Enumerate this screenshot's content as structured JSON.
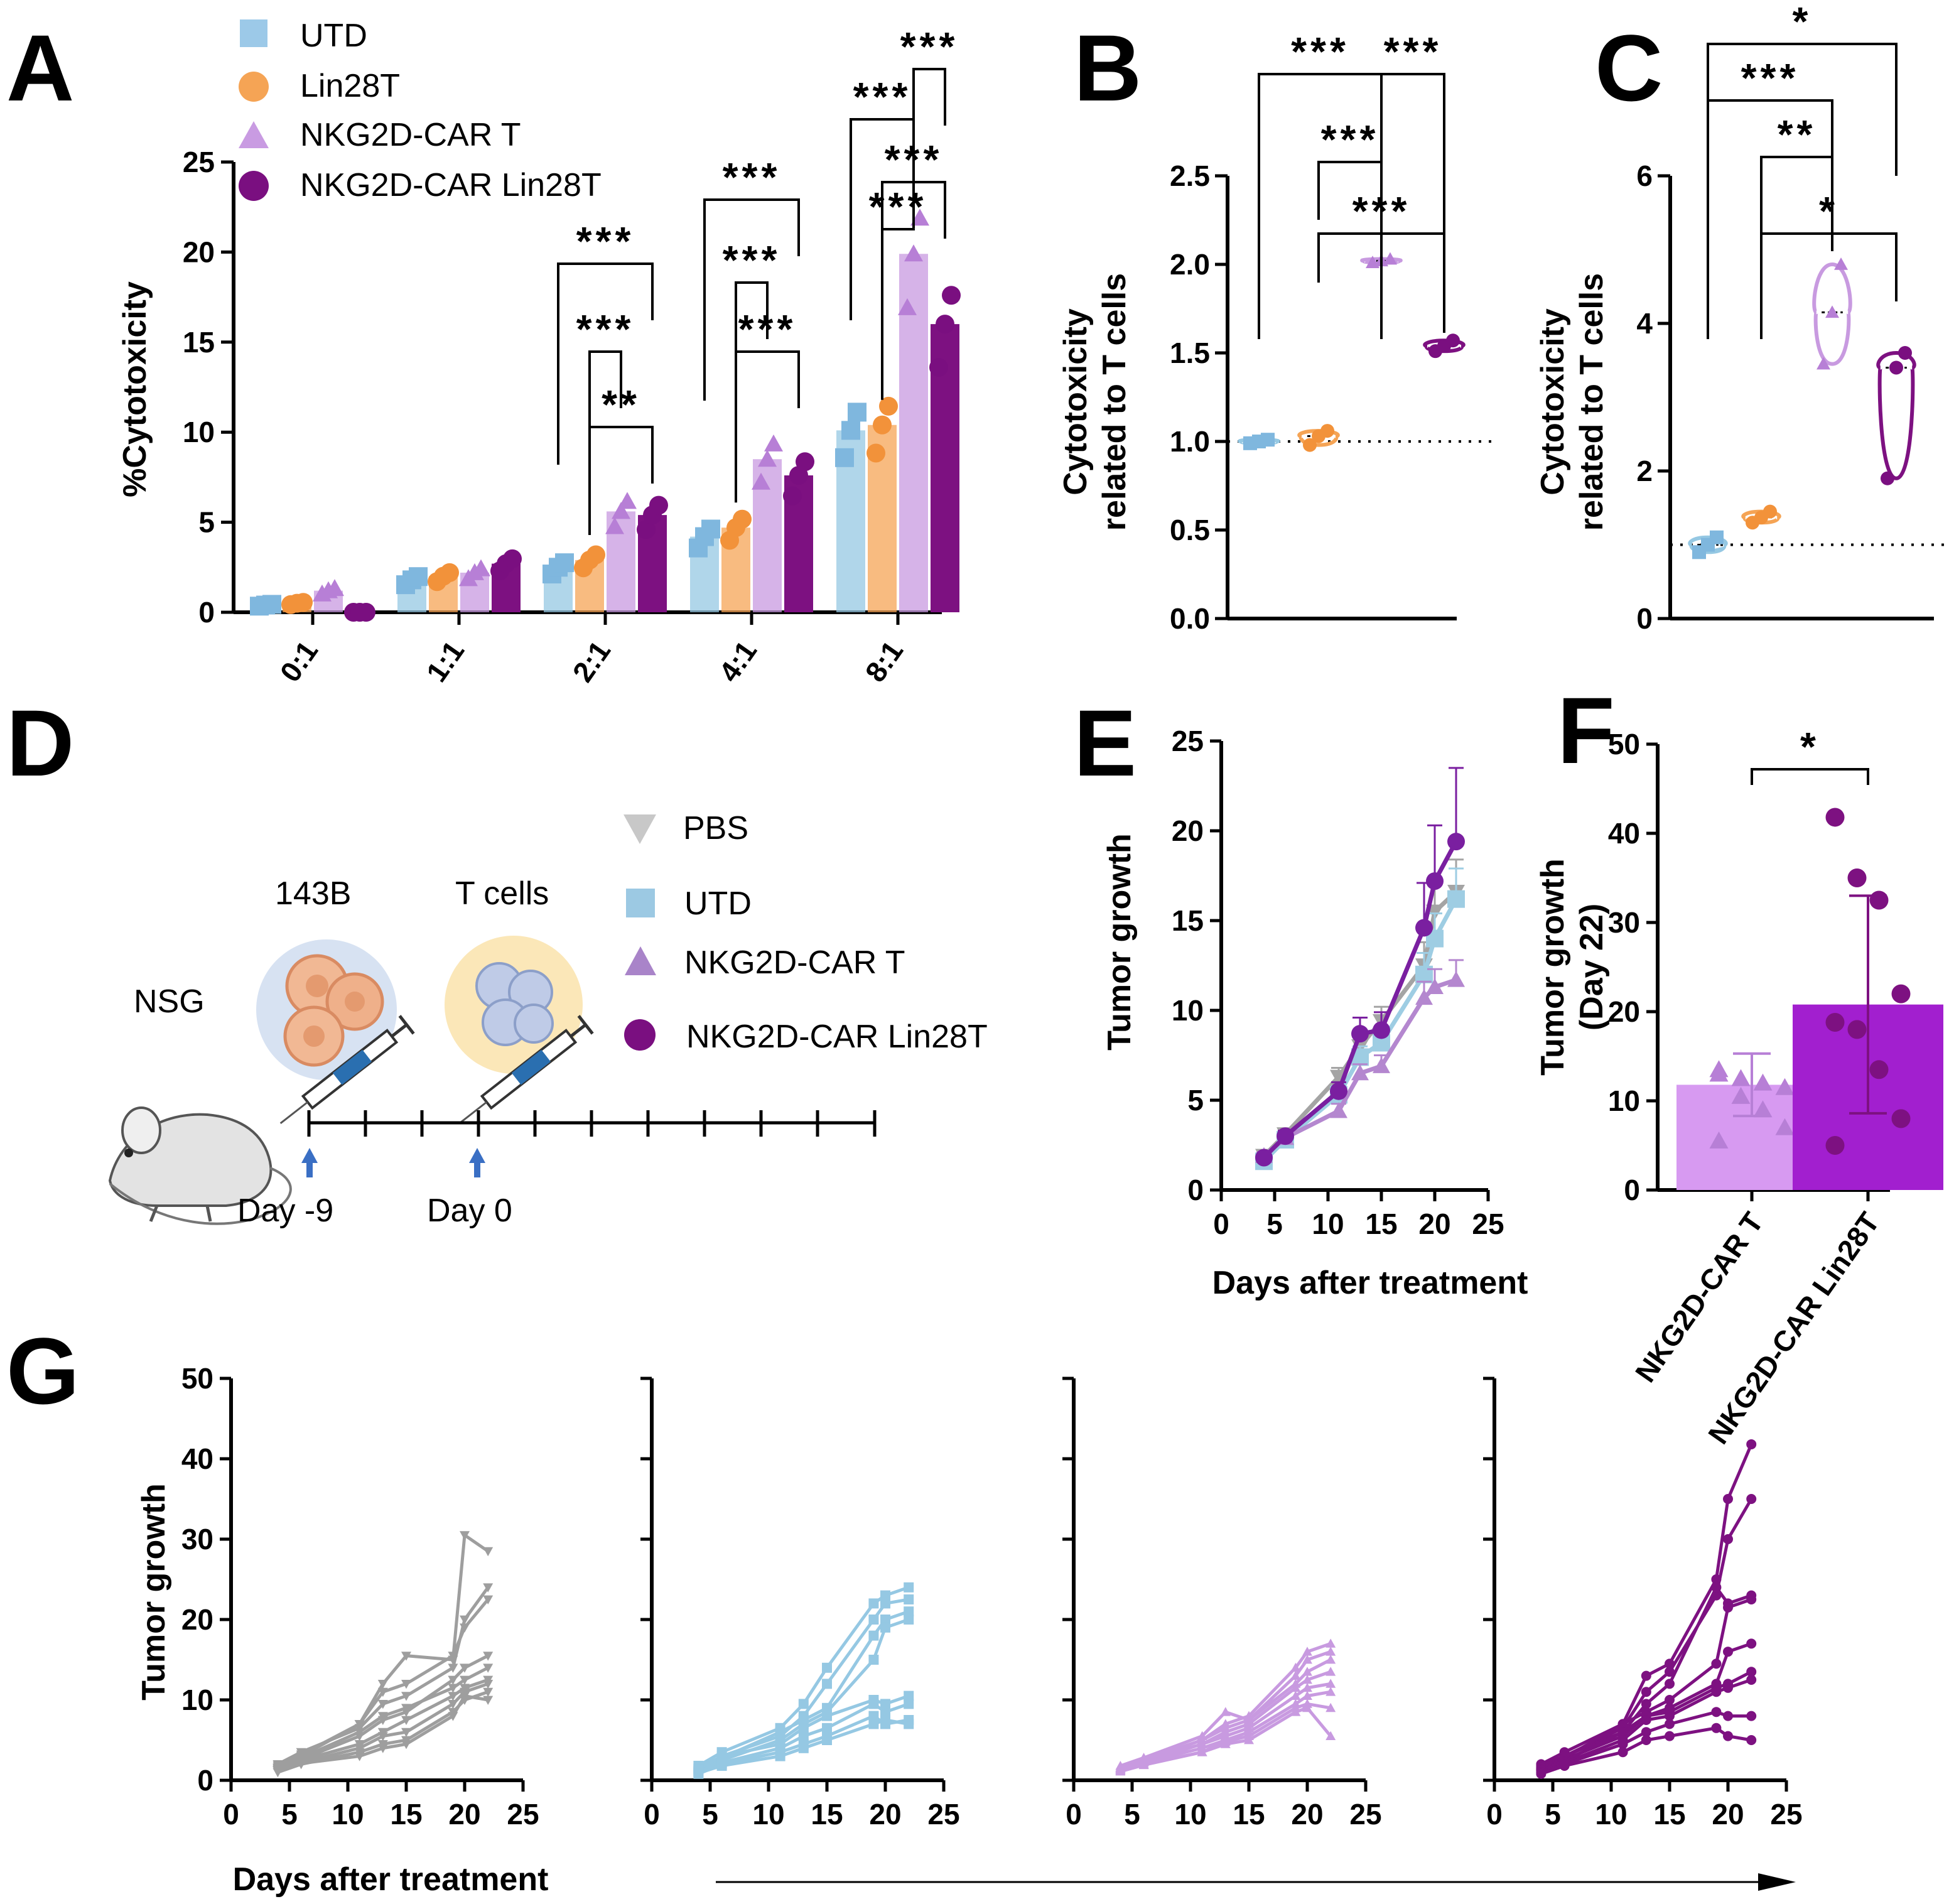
{
  "panel_labels": {
    "A": "A",
    "B": "B",
    "C": "C",
    "D": "D",
    "E": "E",
    "F": "F",
    "G": "G"
  },
  "colors": {
    "UTD": "#95c8e3",
    "UTD_marker": "#7fb7de",
    "Lin28T": "#f5a455",
    "Lin28T_marker": "#f2923a",
    "NKG2D_CAR_T": "#c89ae0",
    "NKG2D_CAR_T_marker": "#b77fd6",
    "NKG2D_CAR_Lin28T": "#7d1181",
    "NKG2D_CAR_Lin28T_marker": "#7a0f80",
    "PBS": "#9e9e9e",
    "F_bar1": "#d79af1",
    "F_bar2": "#a21fcf",
    "E_PBS": "#a4a4a4",
    "E_UTD": "#9ecde3",
    "E_CAR_T": "#b487cf",
    "E_Lin28T": "#7a1fa0"
  },
  "chart_data": [
    {
      "panel": "A",
      "type": "bar",
      "title": "",
      "xlabel": "",
      "ylabel": "%Cytotoxicity",
      "ylim": [
        0,
        25
      ],
      "yticks": [
        "0",
        "5",
        "10",
        "15",
        "20",
        "25"
      ],
      "categories": [
        "0:1",
        "1:1",
        "2:1",
        "4:1",
        "8:1"
      ],
      "legend": [
        "UTD",
        "Lin28T",
        "NKG2D-CAR T",
        "NKG2D-CAR Lin28T"
      ],
      "series": [
        {
          "name": "UTD",
          "values": [
            0.4,
            1.8,
            2.5,
            4.2,
            10.1
          ]
        },
        {
          "name": "Lin28T",
          "values": [
            0.5,
            2.0,
            2.9,
            4.7,
            10.4
          ]
        },
        {
          "name": "NKG2D-CAR T",
          "values": [
            1.2,
            2.2,
            5.6,
            8.5,
            19.9
          ]
        },
        {
          "name": "NKG2D-CAR Lin28T",
          "values": [
            0.0,
            2.7,
            5.4,
            7.6,
            16.0
          ]
        }
      ],
      "significance": [
        {
          "label": "***",
          "cat": "2:1",
          "from": "UTD",
          "to": "NKG2D-CAR Lin28T"
        },
        {
          "label": "***",
          "cat": "2:1",
          "from": "Lin28T",
          "to": "NKG2D-CAR T"
        },
        {
          "label": "**",
          "cat": "2:1",
          "from": "Lin28T",
          "to": "NKG2D-CAR Lin28T"
        },
        {
          "label": "***",
          "cat": "4:1",
          "from": "UTD",
          "to": "NKG2D-CAR Lin28T"
        },
        {
          "label": "***",
          "cat": "4:1",
          "from": "Lin28T",
          "to": "NKG2D-CAR T"
        },
        {
          "label": "***",
          "cat": "4:1",
          "from": "Lin28T",
          "to": "NKG2D-CAR Lin28T"
        },
        {
          "label": "***",
          "cat": "8:1",
          "from": "UTD",
          "to": "NKG2D-CAR T"
        },
        {
          "label": "***",
          "cat": "8:1",
          "from": "NKG2D-CAR T",
          "to": "NKG2D-CAR Lin28T"
        },
        {
          "label": "***",
          "cat": "8:1",
          "from": "Lin28T",
          "to": "NKG2D-CAR T"
        },
        {
          "label": "***",
          "cat": "8:1",
          "from": "Lin28T",
          "to": "NKG2D-CAR Lin28T"
        }
      ]
    },
    {
      "panel": "B",
      "type": "violin",
      "ylabel_line1": "Cytotoxicity",
      "ylabel_line2": "related to T cells",
      "ylim": [
        0,
        2.5
      ],
      "yticks": [
        "0.0",
        "0.5",
        "1.0",
        "1.5",
        "2.0",
        "2.5"
      ],
      "reference_line": 1.0,
      "groups": [
        {
          "name": "UTD",
          "values": [
            0.99,
            1.0,
            1.01
          ]
        },
        {
          "name": "Lin28T",
          "values": [
            0.98,
            1.03,
            1.06
          ]
        },
        {
          "name": "NKG2D-CAR T",
          "values": [
            2.01,
            2.02,
            2.03
          ]
        },
        {
          "name": "NKG2D-CAR Lin28T",
          "values": [
            1.51,
            1.54,
            1.57
          ]
        }
      ],
      "significance": [
        {
          "label": "***",
          "from": "UTD",
          "to": "NKG2D-CAR T"
        },
        {
          "label": "***",
          "from": "NKG2D-CAR T",
          "to": "NKG2D-CAR Lin28T"
        },
        {
          "label": "***",
          "from": "Lin28T",
          "to": "NKG2D-CAR T"
        },
        {
          "label": "***",
          "from": "Lin28T",
          "to": "NKG2D-CAR Lin28T"
        }
      ]
    },
    {
      "panel": "C",
      "type": "violin",
      "ylabel_line1": "Cytotoxicity",
      "ylabel_line2": "related to T cells",
      "ylim": [
        0,
        6
      ],
      "yticks": [
        "0",
        "2",
        "4",
        "6"
      ],
      "reference_line": 1.0,
      "groups": [
        {
          "name": "UTD",
          "values": [
            0.9,
            1.0,
            1.1
          ]
        },
        {
          "name": "Lin28T",
          "values": [
            1.3,
            1.37,
            1.45
          ]
        },
        {
          "name": "NKG2D-CAR T",
          "values": [
            3.45,
            4.15,
            4.8
          ]
        },
        {
          "name": "NKG2D-CAR Lin28T",
          "values": [
            1.9,
            3.4,
            3.6
          ]
        }
      ],
      "significance": [
        {
          "label": "*",
          "from": "UTD",
          "to": "NKG2D-CAR Lin28T"
        },
        {
          "label": "***",
          "from": "UTD",
          "to": "NKG2D-CAR T"
        },
        {
          "label": "**",
          "from": "Lin28T",
          "to": "NKG2D-CAR T"
        },
        {
          "label": "*",
          "from": "Lin28T",
          "to": "NKG2D-CAR Lin28T"
        }
      ]
    },
    {
      "panel": "E",
      "type": "line",
      "xlabel": "Days after treatment",
      "ylabel": "Tumor growth",
      "xlim": [
        0,
        25
      ],
      "ylim": [
        0,
        25
      ],
      "xticks": [
        "0",
        "5",
        "10",
        "15",
        "20",
        "25"
      ],
      "yticks": [
        "0",
        "5",
        "10",
        "15",
        "20",
        "25"
      ],
      "x": [
        4,
        6,
        11,
        13,
        15,
        19,
        20,
        22
      ],
      "series": [
        {
          "name": "PBS",
          "values": [
            1.9,
            3.1,
            6.3,
            8.0,
            9.4,
            12.5,
            15.5,
            16.6
          ],
          "err": [
            0.2,
            0.3,
            0.5,
            0.7,
            0.8,
            1.3,
            1.6,
            1.8
          ]
        },
        {
          "name": "UTD",
          "values": [
            1.6,
            2.8,
            5.3,
            7.4,
            8.2,
            12.0,
            14.0,
            16.2
          ],
          "err": [
            0.2,
            0.3,
            0.5,
            0.6,
            0.7,
            1.2,
            1.4,
            1.7
          ]
        },
        {
          "name": "NKG2D-CAR T",
          "values": [
            1.9,
            2.9,
            4.4,
            6.5,
            6.9,
            10.7,
            11.3,
            11.7
          ],
          "err": [
            0.2,
            0.3,
            0.4,
            0.5,
            0.6,
            0.9,
            1.0,
            1.1
          ]
        },
        {
          "name": "NKG2D-CAR Lin28T",
          "values": [
            1.8,
            3.0,
            5.5,
            8.7,
            8.9,
            14.6,
            17.2,
            19.4
          ],
          "err": [
            0.2,
            0.3,
            0.5,
            0.9,
            1.0,
            2.5,
            3.1,
            4.1
          ]
        }
      ]
    },
    {
      "panel": "F",
      "type": "bar",
      "ylabel_line1": "Tumor growth",
      "ylabel_line2": "(Day 22)",
      "ylim": [
        0,
        50
      ],
      "yticks": [
        "0",
        "10",
        "20",
        "30",
        "40",
        "50"
      ],
      "categories": [
        "NKG2D-CAR T",
        "NKG2D-CAR Lin28T"
      ],
      "values": [
        11.8,
        20.8
      ],
      "errors": [
        3.5,
        12.2
      ],
      "points": [
        [
          13.5,
          12.5,
          12.0,
          11.5,
          13.0,
          10.5,
          9.0,
          7.0,
          5.5
        ],
        [
          41.8,
          35.0,
          32.5,
          22.0,
          18.8,
          18.0,
          13.5,
          8.0,
          5.0
        ]
      ],
      "significance": [
        {
          "label": "*",
          "from": "NKG2D-CAR T",
          "to": "NKG2D-CAR Lin28T"
        }
      ]
    },
    {
      "panel": "G",
      "type": "line",
      "xlabel": "Days after treatment",
      "ylabel": "Tumor growth",
      "xlim": [
        0,
        25
      ],
      "ylim": [
        0,
        50
      ],
      "xticks": [
        "0",
        "5",
        "10",
        "15",
        "20",
        "25"
      ],
      "yticks": [
        "0",
        "10",
        "20",
        "30",
        "40",
        "50"
      ],
      "x": [
        4,
        6,
        11,
        13,
        15,
        19,
        20,
        22
      ],
      "subplots": [
        {
          "name": "PBS",
          "marker": "triangle-down",
          "lines": [
            [
              1.5,
              3.2,
              7.0,
              12.0,
              15.5,
              15.0,
              30.5,
              28.5
            ],
            [
              2.0,
              3.5,
              6.5,
              9.5,
              10.5,
              14.0,
              20.0,
              24.0
            ],
            [
              1.8,
              3.0,
              7.0,
              11.0,
              12.0,
              15.5,
              19.0,
              22.5
            ],
            [
              1.2,
              2.6,
              5.5,
              7.5,
              8.5,
              12.5,
              14.0,
              15.5
            ],
            [
              1.6,
              2.8,
              6.0,
              8.0,
              9.0,
              11.5,
              12.5,
              14.0
            ],
            [
              1.4,
              2.5,
              4.5,
              6.0,
              7.5,
              10.5,
              11.5,
              12.5
            ],
            [
              1.3,
              2.2,
              4.0,
              5.5,
              6.0,
              9.5,
              11.0,
              12.0
            ],
            [
              1.0,
              2.0,
              3.5,
              4.5,
              5.0,
              8.5,
              10.0,
              11.0
            ],
            [
              1.2,
              2.1,
              3.0,
              4.0,
              4.5,
              8.0,
              10.5,
              10.0
            ]
          ]
        },
        {
          "name": "UTD",
          "marker": "square",
          "lines": [
            [
              1.8,
              3.5,
              6.5,
              9.5,
              14.0,
              22.0,
              23.0,
              24.0
            ],
            [
              1.5,
              3.0,
              5.5,
              8.0,
              12.0,
              20.0,
              22.0,
              22.5
            ],
            [
              1.2,
              2.8,
              6.0,
              7.5,
              9.0,
              18.0,
              20.0,
              21.0
            ],
            [
              1.0,
              2.5,
              5.0,
              7.0,
              8.5,
              15.0,
              19.0,
              20.0
            ],
            [
              1.4,
              3.0,
              4.5,
              6.5,
              8.0,
              10.0,
              9.5,
              10.5
            ],
            [
              1.1,
              2.2,
              4.0,
              5.5,
              6.5,
              9.5,
              8.5,
              9.5
            ],
            [
              0.8,
              2.0,
              3.5,
              4.5,
              5.5,
              8.0,
              7.0,
              7.5
            ],
            [
              0.9,
              1.8,
              3.0,
              4.0,
              5.0,
              7.0,
              7.5,
              7.0
            ]
          ]
        },
        {
          "name": "NKG2D-CAR T",
          "marker": "triangle-up",
          "lines": [
            [
              1.5,
              2.5,
              5.0,
              7.0,
              8.0,
              14.0,
              16.0,
              17.0
            ],
            [
              1.8,
              2.8,
              5.5,
              8.5,
              7.5,
              13.0,
              15.0,
              16.0
            ],
            [
              1.6,
              2.6,
              5.0,
              6.5,
              7.5,
              12.0,
              13.5,
              15.0
            ],
            [
              1.4,
              2.5,
              4.5,
              6.0,
              7.0,
              11.5,
              12.5,
              13.5
            ],
            [
              1.5,
              2.3,
              4.5,
              5.5,
              6.5,
              10.5,
              11.5,
              12.0
            ],
            [
              1.3,
              2.2,
              4.0,
              5.0,
              6.0,
              9.5,
              10.5,
              11.0
            ],
            [
              1.2,
              2.0,
              3.5,
              4.8,
              5.5,
              9.0,
              9.5,
              9.0
            ],
            [
              1.1,
              1.9,
              3.5,
              4.5,
              5.0,
              8.5,
              9.0,
              5.5
            ]
          ]
        },
        {
          "name": "NKG2D-CAR Lin28T",
          "marker": "circle",
          "lines": [
            [
              2.0,
              3.5,
              7.0,
              13.0,
              14.5,
              25.0,
              35.0,
              41.8
            ],
            [
              1.8,
              3.0,
              6.5,
              11.0,
              13.5,
              23.0,
              30.0,
              35.0
            ],
            [
              1.6,
              3.0,
              6.0,
              9.5,
              12.0,
              24.0,
              22.0,
              23.0
            ],
            [
              1.5,
              2.8,
              7.0,
              8.5,
              10.0,
              14.5,
              21.5,
              22.5
            ],
            [
              1.4,
              2.6,
              5.5,
              8.0,
              9.0,
              12.0,
              16.0,
              17.0
            ],
            [
              1.3,
              2.4,
              6.0,
              8.0,
              8.5,
              11.5,
              12.0,
              13.5
            ],
            [
              1.2,
              2.2,
              5.0,
              7.5,
              8.0,
              11.0,
              11.5,
              12.5
            ],
            [
              1.0,
              2.0,
              4.5,
              6.0,
              7.0,
              8.5,
              8.0,
              8.0
            ],
            [
              0.8,
              1.8,
              3.5,
              5.0,
              5.5,
              6.5,
              5.5,
              5.0
            ]
          ]
        }
      ]
    }
  ],
  "panel_D": {
    "legend": [
      "PBS",
      "UTD",
      "NKG2D-CAR T",
      "NKG2D-CAR Lin28T"
    ],
    "mouse_label": "NSG",
    "cell_line_label": "143B",
    "tcells_label": "T cells",
    "day_labels": [
      "Day -9",
      "Day 0"
    ]
  },
  "icons": [
    "mouse-icon",
    "tumor-cells-icon",
    "t-cells-icon",
    "syringe-icon",
    "arrow-up-icon"
  ]
}
